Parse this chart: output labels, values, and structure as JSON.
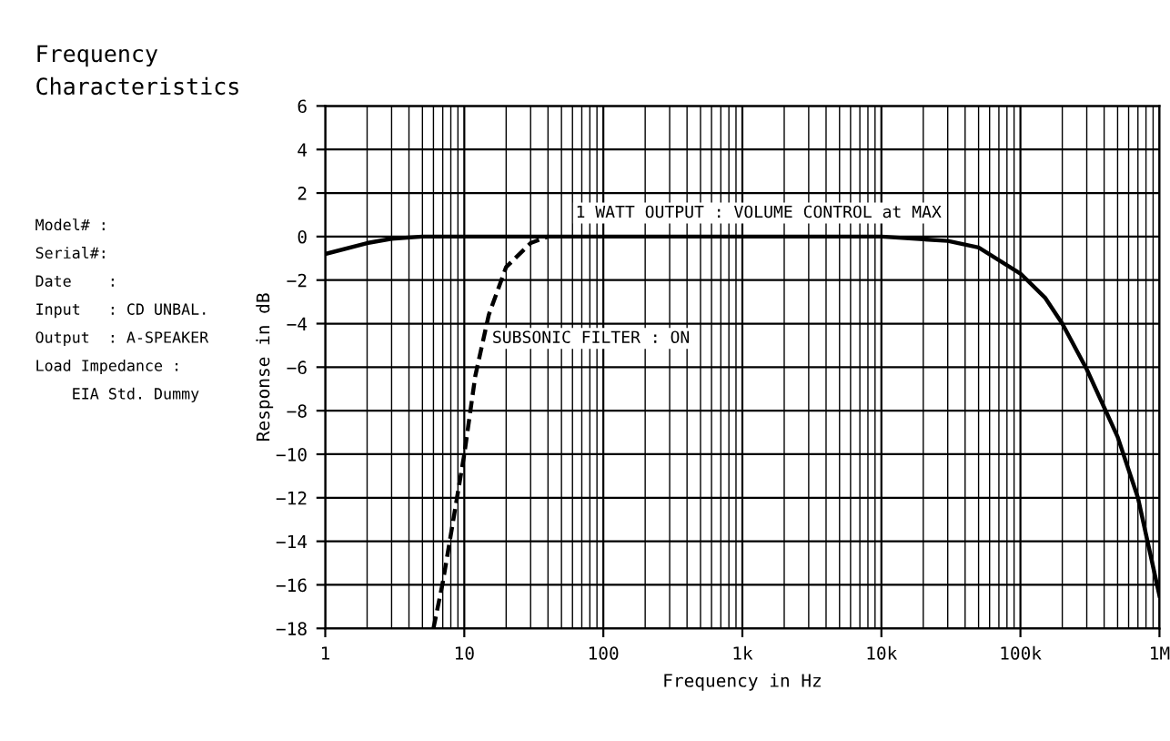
{
  "chart_data": {
    "type": "line",
    "title": "Frequency\nCharacteristics",
    "xlabel": "Frequency in Hz",
    "ylabel": "Response in dB",
    "log": "x",
    "grid": true,
    "marker": "none",
    "xlim": [
      1,
      1000000
    ],
    "xticks": [
      {
        "value": 1,
        "label": "1"
      },
      {
        "value": 10,
        "label": "10"
      },
      {
        "value": 100,
        "label": "100"
      },
      {
        "value": 1000,
        "label": "1k"
      },
      {
        "value": 10000,
        "label": "10k"
      },
      {
        "value": 100000,
        "label": "100k"
      },
      {
        "value": 1000000,
        "label": "1M"
      }
    ],
    "ylim": [
      -18,
      6
    ],
    "yticks": [
      -18,
      -16,
      -14,
      -12,
      -10,
      -8,
      -6,
      -4,
      -2,
      0,
      2,
      4,
      6
    ],
    "series": [
      {
        "color": "#000000",
        "line_style": "solid",
        "x": [
          1,
          2,
          3,
          5,
          10,
          100,
          1000,
          10000,
          30000,
          50000,
          100000,
          150000,
          200000,
          300000,
          500000,
          700000,
          1000000
        ],
        "values": [
          -0.8,
          -0.3,
          -0.1,
          0,
          0,
          0,
          0,
          0,
          -0.2,
          -0.5,
          -1.7,
          -2.8,
          -4.0,
          -6.1,
          -9.2,
          -12,
          -16.5
        ]
      },
      {
        "color": "#000000",
        "line_style": "dashed",
        "x": [
          6,
          7,
          8,
          10,
          12,
          15,
          20,
          30,
          40
        ],
        "values": [
          -18,
          -15.9,
          -13.7,
          -10,
          -6.4,
          -3.6,
          -1.4,
          -0.3,
          0
        ]
      }
    ],
    "annotations": [
      "1 WATT OUTPUT : VOLUME CONTROL at MAX",
      "SUBSONIC FILTER : ON",
      "Model# :",
      "Serial#:",
      "Date    :",
      "Input   : CD UNBAL.",
      "Output  : A-SPEAKER",
      "Load Impedance :",
      "    EIA Std. Dummy"
    ]
  }
}
